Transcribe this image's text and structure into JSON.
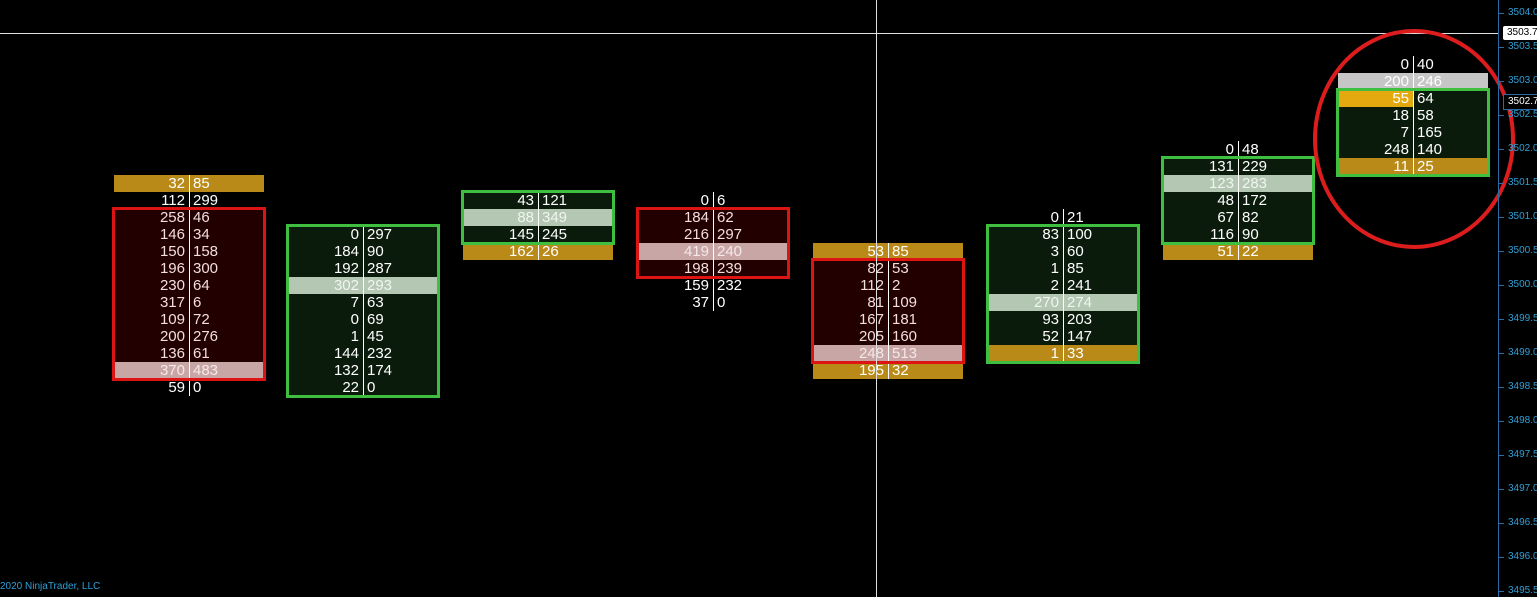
{
  "colors": {
    "background": "#000000",
    "up_box": "#3fbf3f",
    "down_box": "#dd1414",
    "imbalance": "#b98a17",
    "axis": "#2f9fd6",
    "annotation": "#dd1d1d"
  },
  "price_axis": {
    "labels": [
      "3504.0",
      "3503.5",
      "3503.0",
      "3502.5",
      "3502.0",
      "3501.5",
      "3501.0",
      "3500.5",
      "3500.0",
      "3499.5",
      "3499.0",
      "3498.5",
      "3498.0",
      "3497.5",
      "3497.0",
      "3496.5",
      "3496.0",
      "3495.5"
    ],
    "crosshair_price": "3503.7",
    "last_price": "3502.7"
  },
  "copyright": "2020 NinjaTrader, LLC",
  "bars": [
    {
      "direction": "down",
      "top_price": 3501.5,
      "box": [
        2,
        11
      ],
      "rows": [
        {
          "bid": "32",
          "ask": "85",
          "type": "orange"
        },
        {
          "bid": "112",
          "ask": "299"
        },
        {
          "bid": "258",
          "ask": "46"
        },
        {
          "bid": "146",
          "ask": "34"
        },
        {
          "bid": "150",
          "ask": "158"
        },
        {
          "bid": "196",
          "ask": "300"
        },
        {
          "bid": "230",
          "ask": "64"
        },
        {
          "bid": "317",
          "ask": "6"
        },
        {
          "bid": "109",
          "ask": "72"
        },
        {
          "bid": "200",
          "ask": "276"
        },
        {
          "bid": "136",
          "ask": "61"
        },
        {
          "bid": "370",
          "ask": "483",
          "type": "poc"
        },
        {
          "bid": "59",
          "ask": "0"
        }
      ]
    },
    {
      "direction": "up",
      "top_price": 3500.75,
      "box": [
        0,
        9
      ],
      "rows": [
        {
          "bid": "0",
          "ask": "297"
        },
        {
          "bid": "184",
          "ask": "90"
        },
        {
          "bid": "192",
          "ask": "287"
        },
        {
          "bid": "302",
          "ask": "293",
          "type": "poc"
        },
        {
          "bid": "7",
          "ask": "63"
        },
        {
          "bid": "0",
          "ask": "69"
        },
        {
          "bid": "1",
          "ask": "45"
        },
        {
          "bid": "144",
          "ask": "232"
        },
        {
          "bid": "132",
          "ask": "174"
        },
        {
          "bid": "22",
          "ask": "0"
        }
      ]
    },
    {
      "direction": "up",
      "top_price": 3501.25,
      "box": [
        0,
        2
      ],
      "rows": [
        {
          "bid": "43",
          "ask": "121"
        },
        {
          "bid": "88",
          "ask": "349",
          "type": "poc"
        },
        {
          "bid": "145",
          "ask": "245"
        },
        {
          "bid": "162",
          "ask": "26",
          "type": "orange"
        }
      ]
    },
    {
      "direction": "down",
      "top_price": 3501.25,
      "box": [
        1,
        4
      ],
      "rows": [
        {
          "bid": "0",
          "ask": "6"
        },
        {
          "bid": "184",
          "ask": "62"
        },
        {
          "bid": "216",
          "ask": "297"
        },
        {
          "bid": "419",
          "ask": "240",
          "type": "poc"
        },
        {
          "bid": "198",
          "ask": "239"
        },
        {
          "bid": "159",
          "ask": "232"
        },
        {
          "bid": "37",
          "ask": "0"
        }
      ]
    },
    {
      "direction": "down",
      "top_price": 3500.5,
      "box": [
        1,
        6
      ],
      "rows": [
        {
          "bid": "53",
          "ask": "85",
          "type": "orange"
        },
        {
          "bid": "82",
          "ask": "53"
        },
        {
          "bid": "112",
          "ask": "2"
        },
        {
          "bid": "81",
          "ask": "109"
        },
        {
          "bid": "167",
          "ask": "181"
        },
        {
          "bid": "205",
          "ask": "160"
        },
        {
          "bid": "248",
          "ask": "513",
          "type": "poc"
        },
        {
          "bid": "195",
          "ask": "32",
          "type": "orange"
        }
      ]
    },
    {
      "direction": "up",
      "top_price": 3501.0,
      "box": [
        1,
        8
      ],
      "rows": [
        {
          "bid": "0",
          "ask": "21"
        },
        {
          "bid": "83",
          "ask": "100"
        },
        {
          "bid": "3",
          "ask": "60"
        },
        {
          "bid": "1",
          "ask": "85"
        },
        {
          "bid": "2",
          "ask": "241"
        },
        {
          "bid": "270",
          "ask": "274",
          "type": "poc"
        },
        {
          "bid": "93",
          "ask": "203"
        },
        {
          "bid": "52",
          "ask": "147"
        },
        {
          "bid": "1",
          "ask": "33",
          "type": "orange"
        }
      ]
    },
    {
      "direction": "up",
      "top_price": 3502.0,
      "box": [
        1,
        5
      ],
      "rows": [
        {
          "bid": "0",
          "ask": "48"
        },
        {
          "bid": "131",
          "ask": "229"
        },
        {
          "bid": "123",
          "ask": "283",
          "type": "poc"
        },
        {
          "bid": "48",
          "ask": "172"
        },
        {
          "bid": "67",
          "ask": "82"
        },
        {
          "bid": "116",
          "ask": "90"
        },
        {
          "bid": "51",
          "ask": "22",
          "type": "orange"
        }
      ]
    },
    {
      "direction": "up",
      "top_price": 3503.25,
      "box": [
        2,
        6
      ],
      "rows": [
        {
          "bid": "0",
          "ask": "40"
        },
        {
          "bid": "200",
          "ask": "246",
          "type": "gray"
        },
        {
          "bid": "55",
          "ask": "64",
          "type": "yellow-bid"
        },
        {
          "bid": "18",
          "ask": "58"
        },
        {
          "bid": "7",
          "ask": "165"
        },
        {
          "bid": "248",
          "ask": "140"
        },
        {
          "bid": "11",
          "ask": "25",
          "type": "orange"
        }
      ]
    }
  ]
}
